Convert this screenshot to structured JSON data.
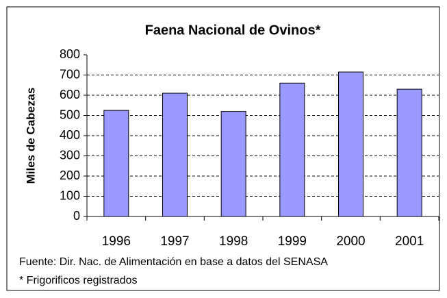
{
  "chart_data": {
    "type": "bar",
    "title": "Faena Nacional de Ovinos*",
    "y_label": "Miles de Cabezas",
    "categories": [
      "1996",
      "1997",
      "1998",
      "1999",
      "2000",
      "2001"
    ],
    "values": [
      525,
      610,
      520,
      660,
      715,
      630
    ],
    "color": "#9999ff",
    "ylim": [
      0,
      800
    ],
    "yticks": [
      0,
      100,
      200,
      300,
      400,
      500,
      600,
      700,
      800
    ],
    "grid": true,
    "notes": [
      "Fuente: Dir. Nac. de Alimentación en base a datos del SENASA",
      "* Frigorificos registrados"
    ]
  }
}
